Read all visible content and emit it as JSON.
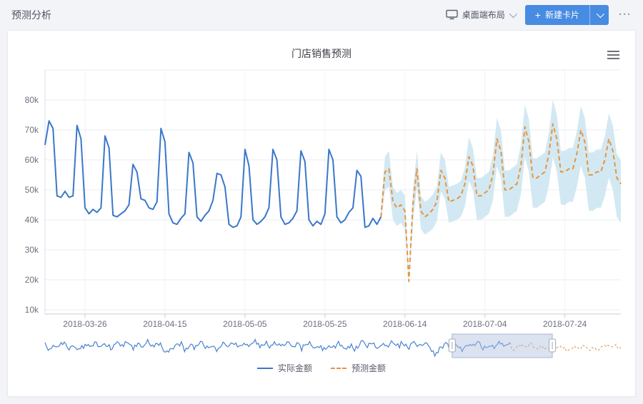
{
  "page": {
    "title": "预测分析"
  },
  "header": {
    "layout_switcher": {
      "label": "桌面端布局"
    },
    "new_card_button": {
      "plus": "+",
      "label": "新建卡片"
    },
    "more_label": "···"
  },
  "card": {
    "title": "门店销售预测"
  },
  "legend": [
    {
      "name": "实际金额",
      "color": "#3a77c9",
      "style": "solid"
    },
    {
      "name": "预测金额",
      "color": "#e8943d",
      "style": "dashed"
    }
  ],
  "colors": {
    "actual_line": "#3a77c9",
    "forecast_line": "#e8943d",
    "band_fill": "#cde7f2",
    "grid_line": "#ebedf2",
    "axis_line": "#ccced8",
    "axis_text": "#6d717f",
    "nav_window_fill": "rgba(176,191,222,0.45)",
    "nav_window_border": "#aab7d6",
    "nav_actual": "#4a82cf",
    "nav_forecast": "#dda268",
    "button_blue": "#478be2"
  },
  "chart_data": {
    "type": "line",
    "title": "门店销售预测",
    "unit": "k",
    "y_tick_values": [
      10,
      20,
      30,
      40,
      50,
      60,
      70,
      80,
      90
    ],
    "y_tick_labels": [
      "10k",
      "20k",
      "30k",
      "40k",
      "50k",
      "60k",
      "70k",
      "80k",
      ""
    ],
    "x_tick_labels": [
      "2018-03-26",
      "2018-04-15",
      "2018-05-05",
      "2018-05-25",
      "2018-06-14",
      "2018-07-04",
      "2018-07-24"
    ],
    "x_tick_indices": [
      10,
      30,
      50,
      70,
      90,
      110,
      130
    ],
    "n_points": 145,
    "ylim": [
      8.5,
      92
    ],
    "series": [
      {
        "name": "实际金额",
        "type": "line",
        "style": "solid",
        "color": "#3a77c9",
        "start_index": 0,
        "values": [
          65,
          73,
          70.5,
          48,
          47.5,
          49.5,
          47.5,
          48,
          71.5,
          67,
          44,
          42,
          43.5,
          42.5,
          44,
          68,
          64,
          41.5,
          41,
          42,
          43,
          45,
          58.5,
          56,
          47,
          46.5,
          44,
          43.5,
          46,
          70.5,
          66,
          42,
          39,
          38.5,
          40.5,
          42,
          62.5,
          59,
          41,
          39.5,
          41.5,
          43,
          46.5,
          55.5,
          55,
          51,
          38.5,
          37.5,
          38,
          41,
          63.5,
          58,
          40,
          38.5,
          39.5,
          41,
          44,
          63.5,
          60,
          41,
          38.5,
          39,
          40.5,
          43,
          63,
          59.5,
          40,
          38,
          39.5,
          38.5,
          42,
          63.5,
          60,
          41,
          39,
          40,
          42.5,
          44,
          56.5,
          54.5,
          37.5,
          38,
          40.5,
          38.5,
          41
        ]
      },
      {
        "name": "预测金额",
        "type": "line",
        "style": "dashed",
        "color": "#e8943d",
        "start_index": 84,
        "values": [
          41,
          56,
          57,
          46,
          44,
          45,
          43,
          19.5,
          45,
          57,
          43,
          41,
          42,
          43.5,
          46,
          56.5,
          54,
          46,
          46.5,
          47,
          48,
          52,
          61,
          58,
          48,
          48,
          49,
          50,
          55,
          67,
          63,
          50,
          50,
          51,
          52,
          58,
          71,
          66,
          54,
          54,
          55,
          56,
          62,
          72,
          67,
          56,
          56,
          57,
          57,
          62,
          70,
          66,
          55,
          55,
          56,
          56,
          60,
          67,
          63,
          54,
          52
        ]
      },
      {
        "type": "band",
        "color": "#cde7f2",
        "start_index": 84,
        "upper": [
          44,
          61,
          63,
          51,
          49,
          50,
          48,
          21,
          50,
          63,
          48,
          46,
          47,
          48.5,
          51,
          62.5,
          60,
          51,
          51.5,
          52,
          53,
          57.5,
          67.5,
          64,
          54,
          54,
          55,
          56,
          61.5,
          74,
          70,
          56.5,
          56.5,
          57.5,
          58.5,
          65,
          78.5,
          73.5,
          60.5,
          60.5,
          61.5,
          62.5,
          69,
          80,
          75,
          63,
          63,
          64,
          64,
          69.5,
          78,
          74,
          62.5,
          62.5,
          63.5,
          63.5,
          68,
          75.5,
          71.5,
          62,
          60
        ],
        "lower": [
          38,
          50,
          51,
          40,
          38,
          39,
          37,
          18,
          39,
          51,
          37,
          35,
          36,
          37,
          39.5,
          49.5,
          47,
          39,
          39.5,
          40,
          41,
          44.5,
          53,
          50,
          40,
          40,
          41,
          42,
          46.5,
          58,
          54,
          41,
          41,
          42,
          43,
          48.5,
          61,
          56,
          44,
          44,
          45,
          46,
          51.5,
          61,
          56,
          45,
          45,
          46,
          46,
          51,
          58,
          54,
          43,
          43,
          44,
          44,
          48,
          54,
          50,
          41,
          39
        ]
      }
    ],
    "navigator": {
      "window_start_pct": 70.7,
      "window_end_pct": 88.1,
      "series_split_pct": 80.8
    }
  }
}
